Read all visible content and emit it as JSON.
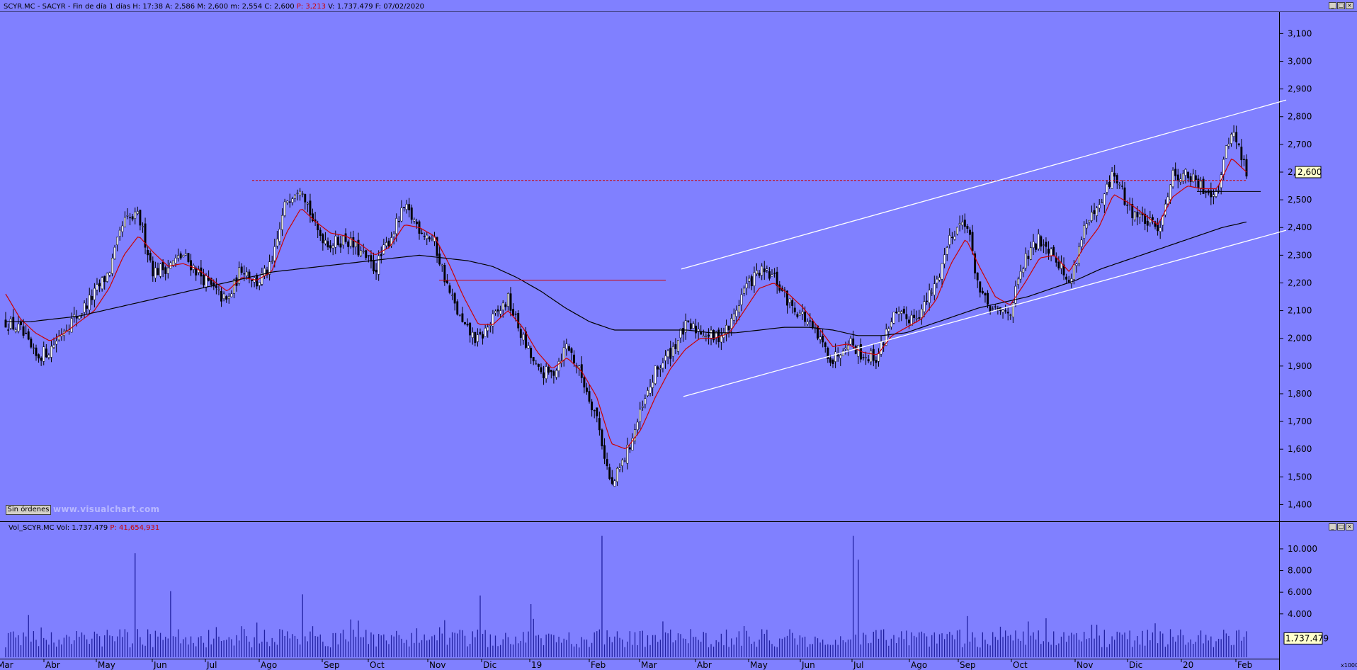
{
  "header": {
    "main_parts": [
      "SCYR.MC - SACYR - Fin de día 1 días  H: 17:38  A: 2,586  M: 2,600  m: 2,554  C: 2,600  ",
      "P: 3,213",
      "  V: 1.737.479  F: 07/02/2020"
    ],
    "volume_parts": [
      "Vol_SCYR.MC  Vol: 1.737.479  ",
      "P: 41,654,931"
    ]
  },
  "controls": {
    "minimize": "_",
    "restore": "□",
    "close": "×"
  },
  "orders_button": "Sin órdenes",
  "watermark": "www.visualchart.com",
  "colors": {
    "background": "#8080ff",
    "price_label_box": "#ffffcc",
    "ma_short": "#cc0000",
    "ma_long": "#000000",
    "trendlines": "#ffffff",
    "resistance": "#cc0000",
    "volume_bars": "#2020a0"
  },
  "chart_data": [
    {
      "type": "candlestick",
      "title": "SCYR.MC - SACYR",
      "xlabel": "",
      "ylabel": "",
      "ylim": [
        1.35,
        3.17
      ],
      "x_ticks": [
        "Mar",
        "Abr",
        "May",
        "Jun",
        "Jul",
        "Ago",
        "Sep",
        "Oct",
        "Nov",
        "Dic",
        "19",
        "Feb",
        "Mar",
        "Abr",
        "May",
        "Jun",
        "Jul",
        "Ago",
        "Sep",
        "Oct",
        "Nov",
        "Dic",
        "20",
        "Feb"
      ],
      "y_ticks": [
        "3,100",
        "3,000",
        "2,900",
        "2,800",
        "2,700",
        "2,600",
        "2,500",
        "2,400",
        "2,300",
        "2,200",
        "2,100",
        "2,000",
        "1,900",
        "1,800",
        "1,700",
        "1,600",
        "1,500",
        "1,400"
      ],
      "last_price_label": "2,600",
      "series": [
        {
          "values_close": [
            2.06,
            2.03,
            1.93,
            1.96,
            2.04,
            2.09,
            2.16,
            2.24,
            2.42,
            2.44,
            2.24,
            2.26,
            2.3,
            2.24,
            2.18,
            2.13,
            2.26,
            2.2,
            2.26,
            2.5,
            2.56,
            2.39,
            2.34,
            2.36,
            2.31,
            2.25,
            2.36,
            2.47,
            2.4,
            2.35,
            2.17,
            2.04,
            1.99,
            2.07,
            2.14,
            2.0,
            1.88,
            1.87,
            1.98,
            1.86,
            1.72,
            1.46,
            1.58,
            1.73,
            1.88,
            1.95,
            2.04,
            2.03,
            2.0,
            2.04,
            2.18,
            2.24,
            2.22,
            2.13,
            2.08,
            2.0,
            1.92,
            2.0,
            1.94,
            1.93,
            2.08,
            2.07,
            2.1,
            2.2,
            2.38,
            2.43,
            2.15,
            2.09,
            2.1,
            2.28,
            2.36,
            2.31,
            2.19,
            2.4,
            2.46,
            2.6,
            2.47,
            2.43,
            2.39,
            2.59,
            2.59,
            2.54,
            2.53,
            2.76,
            2.6
          ]
        },
        {
          "name": "",
          "values": [
            2.16,
            2.07,
            2.02,
            1.99,
            2.02,
            2.06,
            2.1,
            2.18,
            2.3,
            2.37,
            2.31,
            2.26,
            2.27,
            2.25,
            2.21,
            2.17,
            2.22,
            2.21,
            2.24,
            2.38,
            2.47,
            2.42,
            2.38,
            2.37,
            2.34,
            2.3,
            2.33,
            2.41,
            2.4,
            2.37,
            2.27,
            2.15,
            2.05,
            2.05,
            2.1,
            2.04,
            1.95,
            1.89,
            1.93,
            1.88,
            1.79,
            1.62,
            1.6,
            1.67,
            1.79,
            1.89,
            1.96,
            2.0,
            2.0,
            2.02,
            2.1,
            2.18,
            2.2,
            2.16,
            2.11,
            2.04,
            1.97,
            1.98,
            1.95,
            1.94,
            2.01,
            2.04,
            2.07,
            2.14,
            2.27,
            2.36,
            2.25,
            2.15,
            2.12,
            2.2,
            2.29,
            2.3,
            2.24,
            2.33,
            2.4,
            2.52,
            2.49,
            2.45,
            2.41,
            2.51,
            2.55,
            2.54,
            2.54,
            2.65,
            2.6
          ]
        },
        {
          "name": "",
          "values": [
            2.06,
            2.06,
            2.07,
            2.08,
            2.1,
            2.12,
            2.14,
            2.16,
            2.18,
            2.2,
            2.22,
            2.24,
            2.25,
            2.26,
            2.27,
            2.28,
            2.29,
            2.3,
            2.29,
            2.28,
            2.26,
            2.22,
            2.17,
            2.11,
            2.06,
            2.03,
            2.03,
            2.03,
            2.03,
            2.02,
            2.02,
            2.03,
            2.04,
            2.04,
            2.03,
            2.01,
            2.01,
            2.02,
            2.05,
            2.08,
            2.11,
            2.13,
            2.15,
            2.18,
            2.21,
            2.25,
            2.28,
            2.31,
            2.34,
            2.37,
            2.4,
            2.42
          ]
        }
      ],
      "annotations": {
        "resistance_level": 2.57,
        "support_level": 2.53,
        "prior_resistance_level": 2.21
      }
    },
    {
      "type": "bar",
      "title": "Vol_SCYR.MC",
      "xlabel": "",
      "ylabel": "",
      "ylim": [
        0,
        11500
      ],
      "y_ticks": [
        "10.000",
        "8.000",
        "6.000",
        "4.000"
      ],
      "y_unit": "x1000",
      "last_value_label": "1.737.479",
      "series": [
        {
          "name": "",
          "spikes": [
            {
              "pos": 0.1053,
              "value": 9600
            },
            {
              "pos": 0.133,
              "value": 6100
            },
            {
              "pos": 0.2402,
              "value": 5800
            },
            {
              "pos": 0.3816,
              "value": 5700
            },
            {
              "pos": 0.4226,
              "value": 4900
            },
            {
              "pos": 0.481,
              "value": 11200
            },
            {
              "pos": 0.6828,
              "value": 11200
            },
            {
              "pos": 0.688,
              "value": 9000
            },
            {
              "pos": 0.7745,
              "value": 3800
            },
            {
              "pos": 0.8242,
              "value": 3300
            }
          ]
        }
      ]
    }
  ]
}
